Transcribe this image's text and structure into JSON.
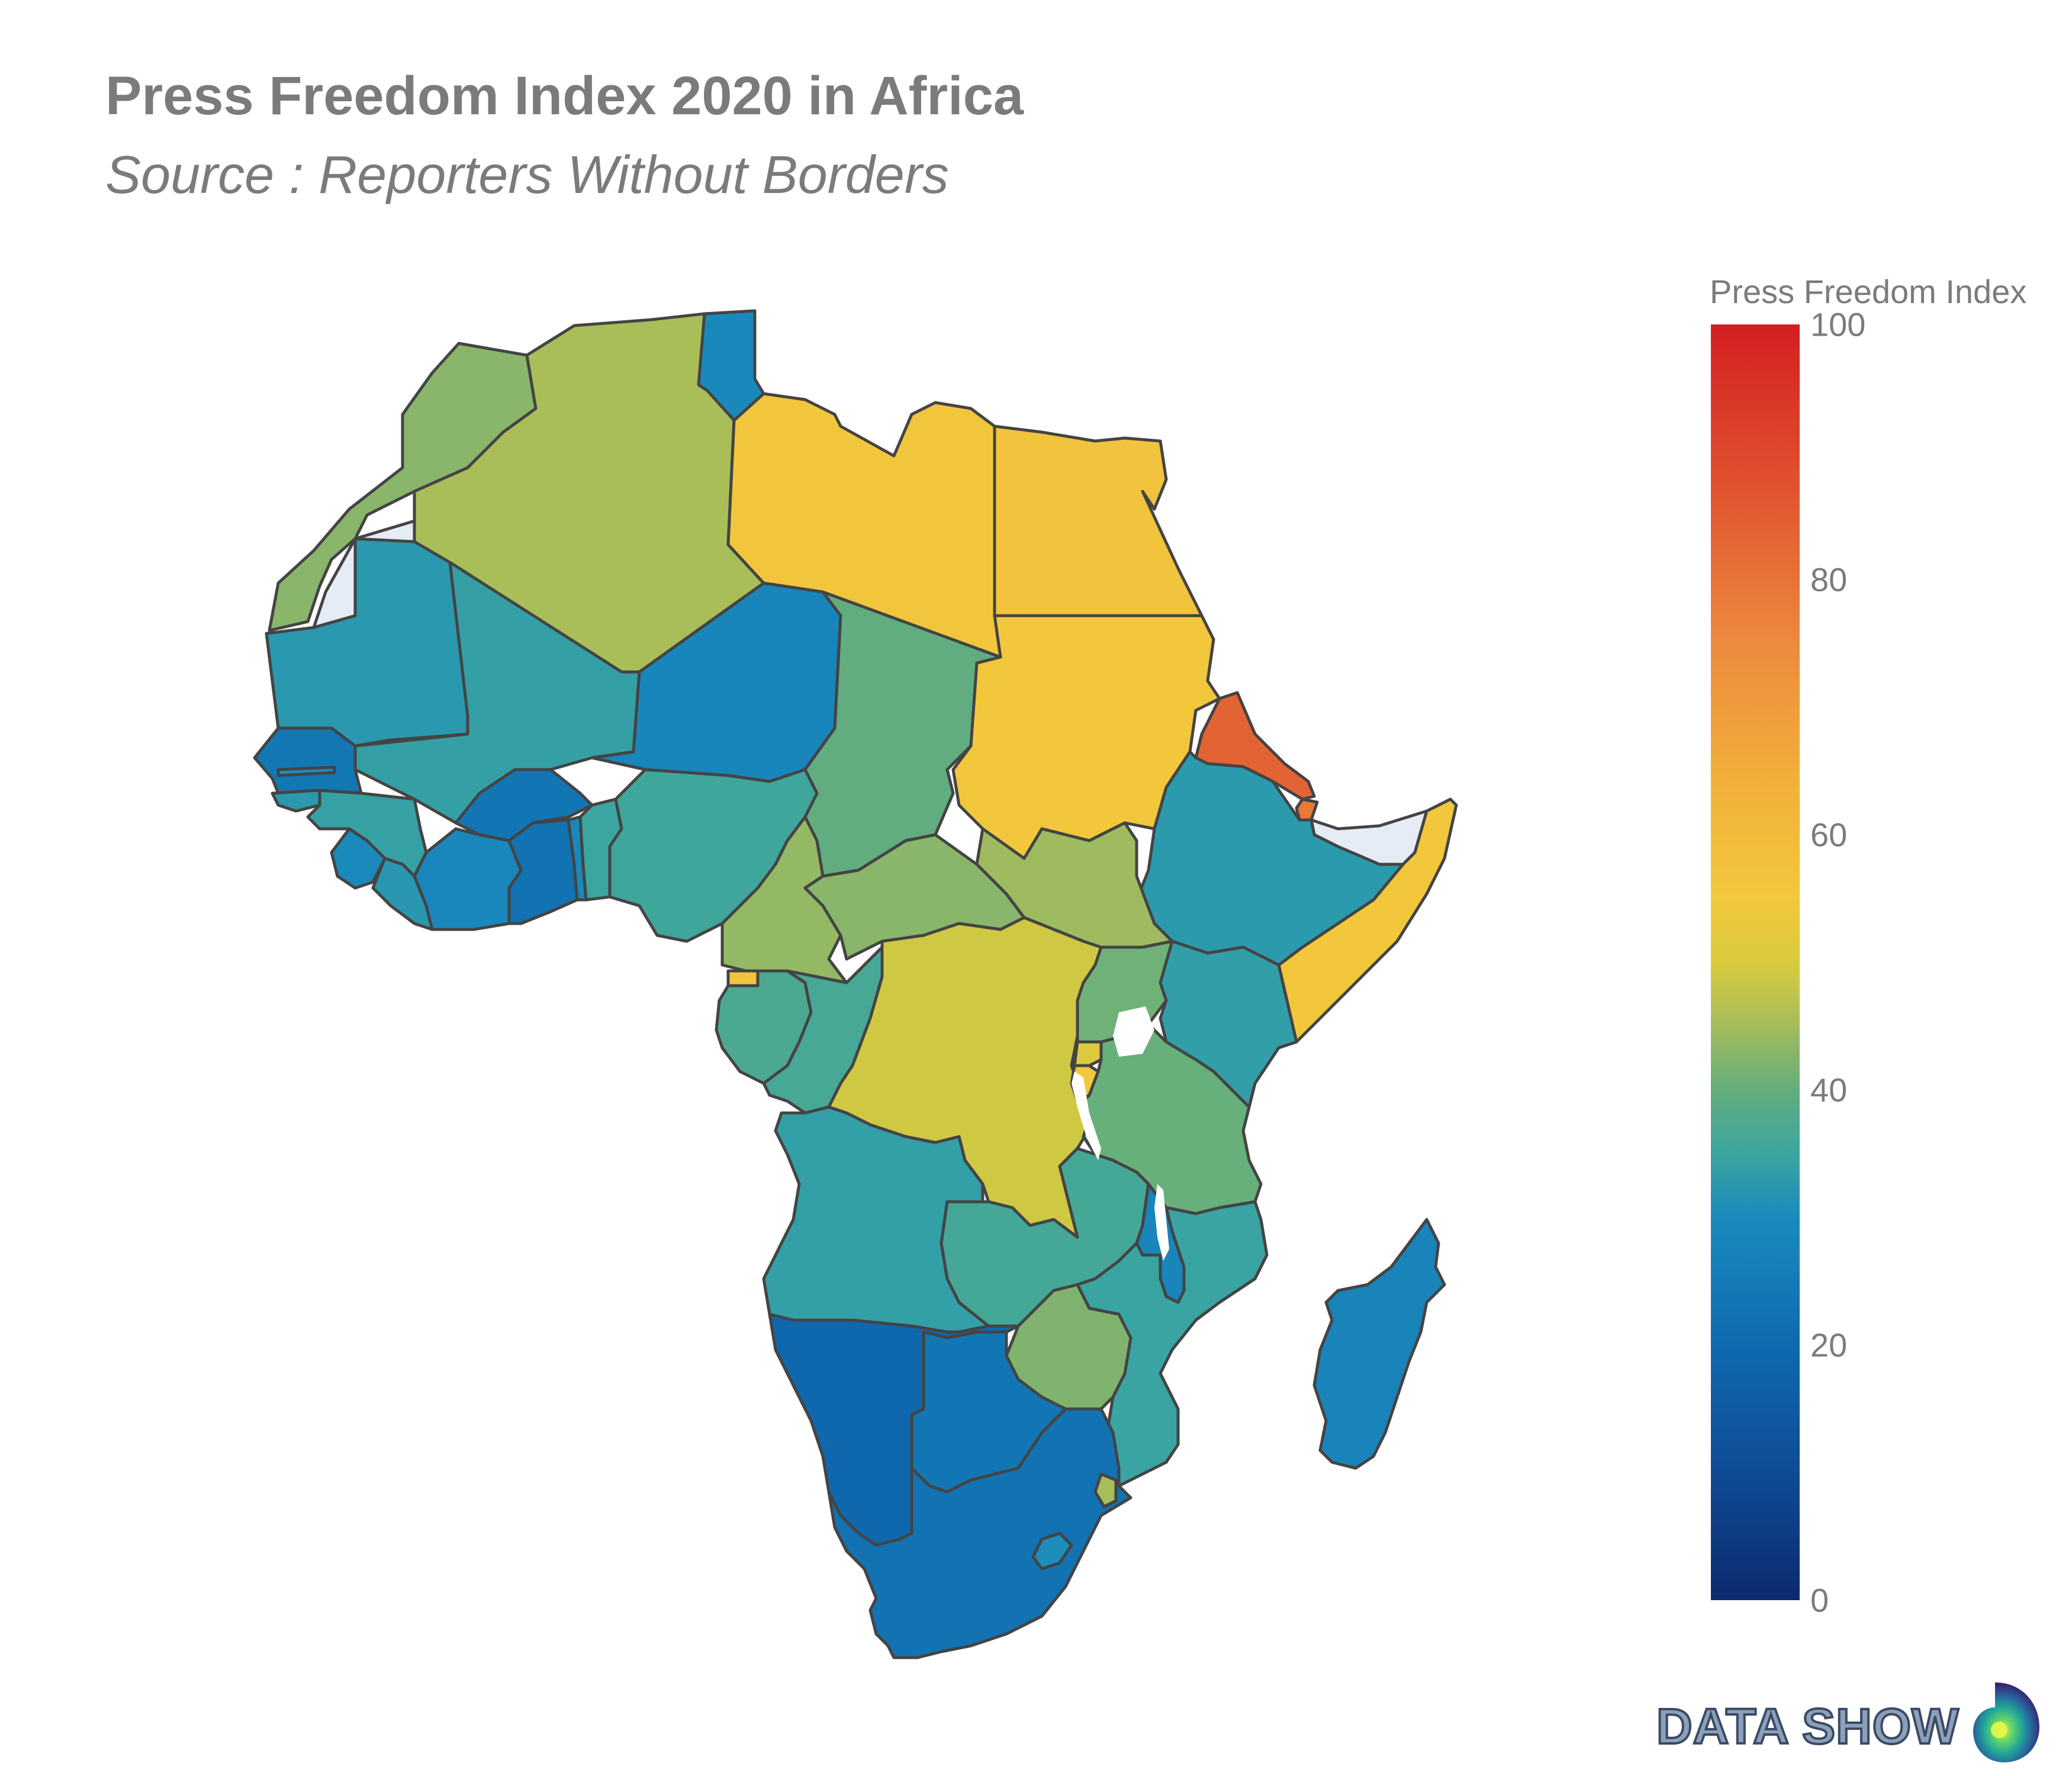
{
  "title": "Press Freedom Index 2020 in Africa",
  "subtitle": "Source : Reporters Without Borders",
  "colorbar": {
    "title": "Press Freedom Index",
    "ticks": [
      "100",
      "80",
      "60",
      "40",
      "20",
      "0"
    ],
    "min": 0,
    "max": 100,
    "colorscale": [
      "#0c2a6e",
      "#0f6aaf",
      "#3aa5a0",
      "#a4bc5c",
      "#f2c83c",
      "#ec8a3e",
      "#d41f22"
    ]
  },
  "brand": {
    "name": "DATA SHOW",
    "icon": "data-show-logo-icon"
  },
  "colors": {
    "no_data": "#e5ecf6",
    "border": "#444444",
    "text": "#7b7b7b"
  },
  "chart_data": {
    "type": "choropleth",
    "scope": "africa",
    "value_label": "Press Freedom Index",
    "range": [
      0,
      100
    ],
    "regions": [
      {
        "name": "Morocco",
        "value": 42.9
      },
      {
        "name": "Algeria",
        "value": 45.5
      },
      {
        "name": "Tunisia",
        "value": 29.5
      },
      {
        "name": "Libya",
        "value": 55.8
      },
      {
        "name": "Egypt",
        "value": 56.8
      },
      {
        "name": "Mauritania",
        "value": 32.5
      },
      {
        "name": "Mali",
        "value": 34.1
      },
      {
        "name": "Niger",
        "value": 28.3
      },
      {
        "name": "Chad",
        "value": 39.7
      },
      {
        "name": "Sudan",
        "value": 55.3
      },
      {
        "name": "Eritrea",
        "value": 83.5
      },
      {
        "name": "Djibouti",
        "value": 78.8
      },
      {
        "name": "Ethiopia",
        "value": 32.8
      },
      {
        "name": "Somalia",
        "value": 55.5
      },
      {
        "name": "Senegal",
        "value": 23.9
      },
      {
        "name": "Gambia",
        "value": 30.6
      },
      {
        "name": "Guinea-Bissau",
        "value": 32.7
      },
      {
        "name": "Guinea",
        "value": 34.3
      },
      {
        "name": "Sierra Leone",
        "value": 29.6
      },
      {
        "name": "Liberia",
        "value": 32.3
      },
      {
        "name": "Cote d'Ivoire",
        "value": 28.9
      },
      {
        "name": "Burkina Faso",
        "value": 23.5
      },
      {
        "name": "Ghana",
        "value": 22.3
      },
      {
        "name": "Togo",
        "value": 29.3
      },
      {
        "name": "Benin",
        "value": 35.1
      },
      {
        "name": "Nigeria",
        "value": 35.6
      },
      {
        "name": "Cameroon",
        "value": 43.8
      },
      {
        "name": "Central African Rep.",
        "value": 42.9
      },
      {
        "name": "South Sudan",
        "value": 44.5
      },
      {
        "name": "Equatorial Guinea",
        "value": 56.4
      },
      {
        "name": "Gabon",
        "value": 37.2
      },
      {
        "name": "Congo",
        "value": 36.6
      },
      {
        "name": "Dem. Rep. Congo",
        "value": 49.1
      },
      {
        "name": "Uganda",
        "value": 40.9
      },
      {
        "name": "Kenya",
        "value": 33.7
      },
      {
        "name": "Rwanda",
        "value": 50.3
      },
      {
        "name": "Burundi",
        "value": 55.3
      },
      {
        "name": "Tanzania",
        "value": 40.3
      },
      {
        "name": "Angola",
        "value": 33.9
      },
      {
        "name": "Zambia",
        "value": 36.4
      },
      {
        "name": "Malawi",
        "value": 28.3
      },
      {
        "name": "Mozambique",
        "value": 34.9
      },
      {
        "name": "Zimbabwe",
        "value": 42.2
      },
      {
        "name": "Namibia",
        "value": 19.3
      },
      {
        "name": "Botswana",
        "value": 23.6
      },
      {
        "name": "South Africa",
        "value": 22.4
      },
      {
        "name": "Lesotho",
        "value": 30.5
      },
      {
        "name": "Eswatini",
        "value": 45.2
      },
      {
        "name": "Madagascar",
        "value": 28.0
      },
      {
        "name": "Western Sahara",
        "value": null
      },
      {
        "name": "Somaliland",
        "value": null
      }
    ]
  }
}
